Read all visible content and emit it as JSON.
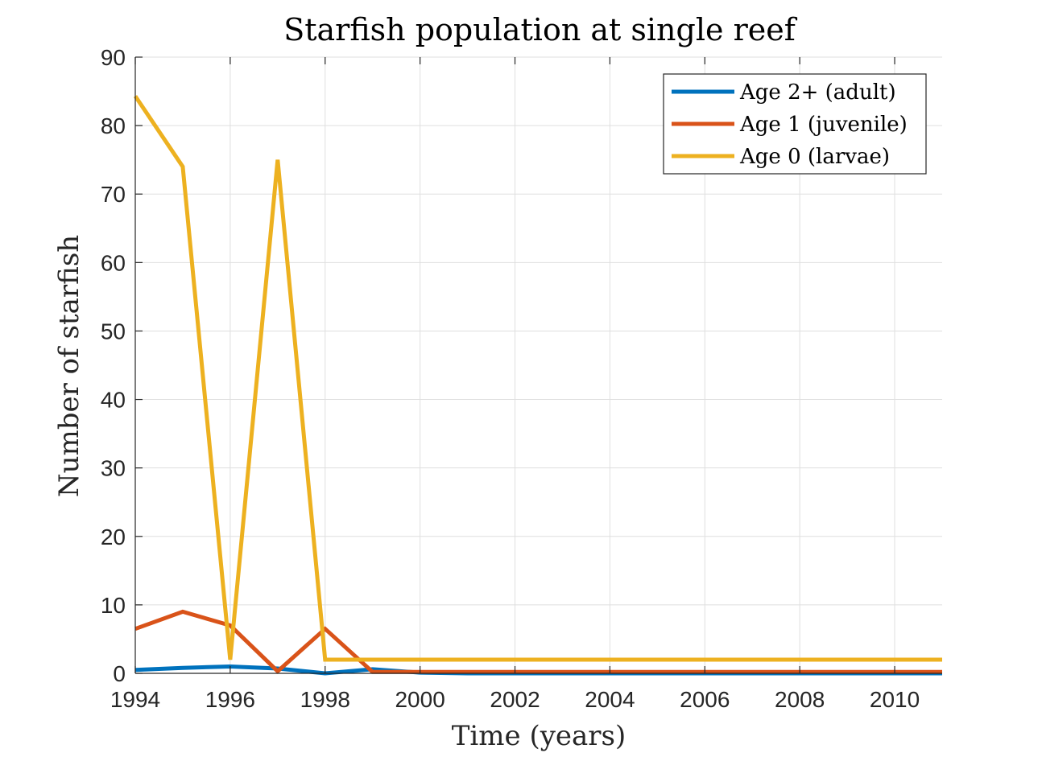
{
  "chart_data": {
    "type": "line",
    "title": "Starfish population at single reef",
    "xlabel": "Time (years)",
    "ylabel": "Number of starfish",
    "xlim": [
      1994,
      2011
    ],
    "ylim": [
      0,
      90
    ],
    "xticks": [
      1994,
      1996,
      1998,
      2000,
      2002,
      2004,
      2006,
      2008,
      2010
    ],
    "yticks": [
      0,
      10,
      20,
      30,
      40,
      50,
      60,
      70,
      80,
      90
    ],
    "grid": true,
    "legend_position": "top-right",
    "x": [
      1994,
      1995,
      1996,
      1997,
      1998,
      1999,
      2000,
      2001,
      2002,
      2003,
      2004,
      2005,
      2006,
      2007,
      2008,
      2009,
      2010,
      2011
    ],
    "series": [
      {
        "name": "Age 2+ (adult)",
        "color": "#0072BD",
        "values": [
          0.5,
          0.8,
          1.0,
          0.7,
          0.0,
          0.6,
          0.1,
          0.0,
          0.0,
          0.0,
          0.0,
          0.0,
          0.0,
          0.0,
          0.0,
          0.0,
          0.0,
          0.0
        ]
      },
      {
        "name": "Age 1 (juvenile)",
        "color": "#D95319",
        "values": [
          6.5,
          9.0,
          7.0,
          0.3,
          6.5,
          0.2,
          0.2,
          0.2,
          0.2,
          0.2,
          0.2,
          0.2,
          0.2,
          0.2,
          0.2,
          0.2,
          0.2,
          0.2
        ]
      },
      {
        "name": "Age 0 (larvae)",
        "color": "#EDB120",
        "values": [
          84.3,
          74.0,
          2.0,
          75.0,
          2.0,
          2.0,
          2.0,
          2.0,
          2.0,
          2.0,
          2.0,
          2.0,
          2.0,
          2.0,
          2.0,
          2.0,
          2.0,
          2.0
        ]
      }
    ]
  }
}
